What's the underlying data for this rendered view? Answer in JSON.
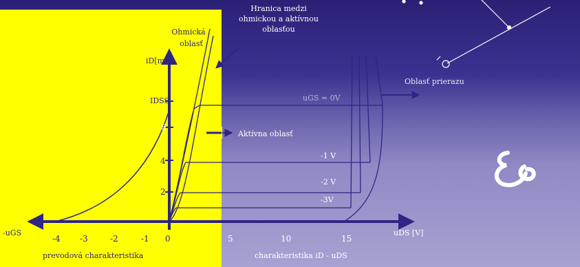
{
  "labels": {
    "boundary_line1": "Hranica medzi",
    "boundary_line2": "ohmickou a aktívnou",
    "boundary_line3": "oblasťou",
    "ohmic_line1": "Ohmická",
    "ohmic_line2": "oblasť",
    "active_region": "Aktívna oblasť",
    "breakdown_region": "Oblasť prierazu",
    "transfer_caption": "prevodová charakteristika",
    "output_caption": "charakteristika iD - uDS",
    "y_axis_label": "iD[mA]",
    "y_tick_idss": "IDSS",
    "x_axis_right_label": "uDS [V]",
    "x_axis_left_label": "-uGS",
    "gs_zero_label": "uGS = 0V",
    "gs_minus1": "-1 V",
    "gs_minus2": "-2 V",
    "gs_minus3": "-3V",
    "ticks_left": [
      "-4",
      "-3",
      "-2",
      "-1",
      "0"
    ],
    "ticks_right": [
      "5",
      "10",
      "15"
    ],
    "ticks_y": [
      "2",
      "4",
      "6"
    ]
  },
  "colors": {
    "yellow_panel": "#FFFF00",
    "navy": "#2E2584",
    "lavender": "#9A95C9",
    "white": "#FFFFFF"
  },
  "icons": {
    "logo": "eg-monogram-icon",
    "symbol": "transistor-symbol-icon"
  }
}
